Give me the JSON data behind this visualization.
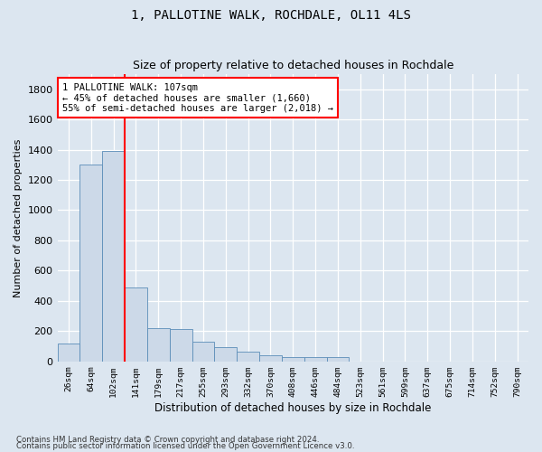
{
  "title": "1, PALLOTINE WALK, ROCHDALE, OL11 4LS",
  "subtitle": "Size of property relative to detached houses in Rochdale",
  "xlabel": "Distribution of detached houses by size in Rochdale",
  "ylabel": "Number of detached properties",
  "bar_color": "#ccd9e8",
  "bar_edge_color": "#5b8db8",
  "categories": [
    "26sqm",
    "64sqm",
    "102sqm",
    "141sqm",
    "179sqm",
    "217sqm",
    "255sqm",
    "293sqm",
    "332sqm",
    "370sqm",
    "408sqm",
    "446sqm",
    "484sqm",
    "523sqm",
    "561sqm",
    "599sqm",
    "637sqm",
    "675sqm",
    "714sqm",
    "752sqm",
    "790sqm"
  ],
  "values": [
    120,
    1300,
    1390,
    490,
    220,
    210,
    130,
    95,
    65,
    40,
    30,
    30,
    30,
    0,
    0,
    0,
    0,
    0,
    0,
    0,
    0
  ],
  "vline_bin_idx": 2,
  "annotation_line1": "1 PALLOTINE WALK: 107sqm",
  "annotation_line2": "← 45% of detached houses are smaller (1,660)",
  "annotation_line3": "55% of semi-detached houses are larger (2,018) →",
  "annotation_box_color": "white",
  "annotation_box_edge_color": "red",
  "vline_color": "red",
  "ylim": [
    0,
    1900
  ],
  "yticks": [
    0,
    200,
    400,
    600,
    800,
    1000,
    1200,
    1400,
    1600,
    1800
  ],
  "footer1": "Contains HM Land Registry data © Crown copyright and database right 2024.",
  "footer2": "Contains public sector information licensed under the Open Government Licence v3.0.",
  "bg_color": "#dce6f0",
  "plot_bg_color": "#dce6f0",
  "title_fontsize": 10,
  "subtitle_fontsize": 9
}
